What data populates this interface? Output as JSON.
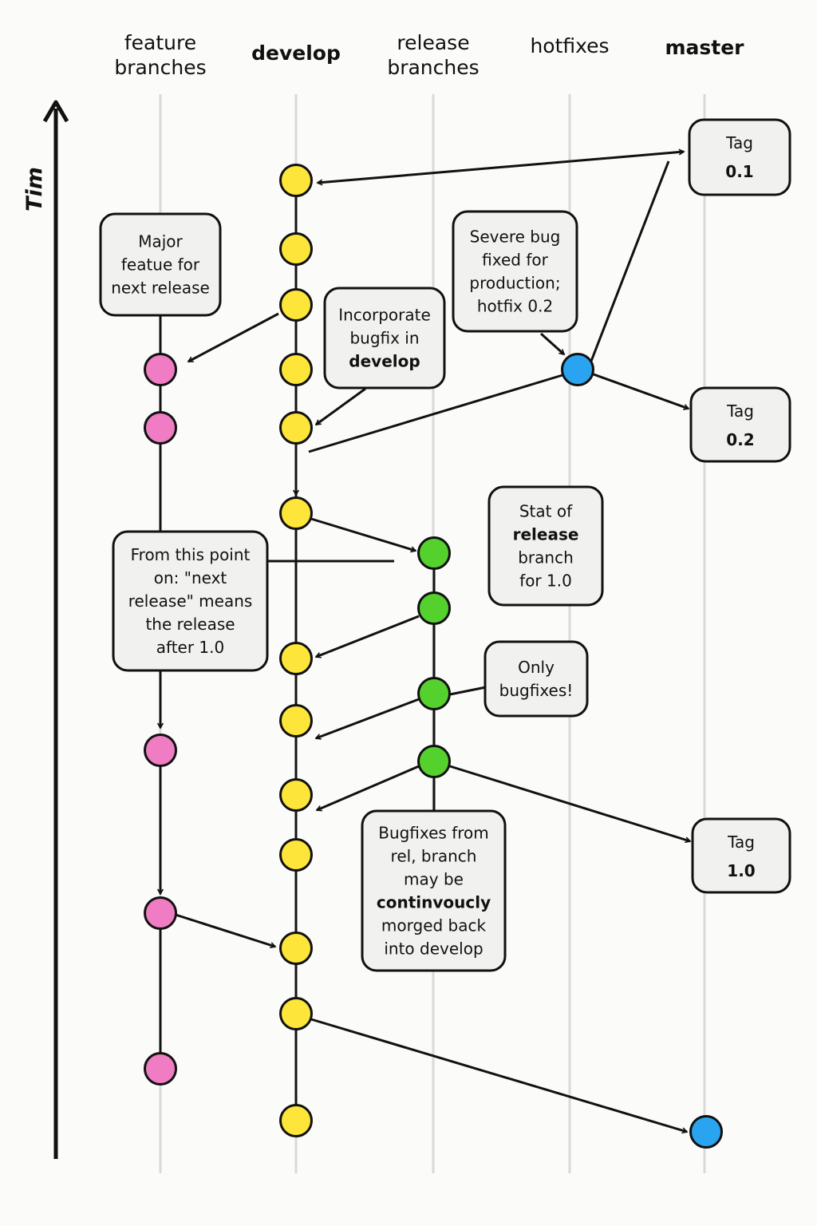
{
  "columns": [
    {
      "label": [
        "feature",
        "branches"
      ],
      "bold": false
    },
    {
      "label": [
        "develop"
      ],
      "bold": true
    },
    {
      "label": [
        "release",
        "branches"
      ],
      "bold": false
    },
    {
      "label": [
        "hotfixes"
      ],
      "bold": false
    },
    {
      "label": [
        "master"
      ],
      "bold": true
    }
  ],
  "axis_label": "Tim",
  "colors": {
    "feature": "#f07cc4",
    "develop": "#fde53a",
    "release": "#55d12e",
    "hotfix": "#2aa4f0",
    "lane": "#d9d9d9",
    "box_fill": "#f1f1f0"
  },
  "tags": [
    {
      "label": "Tag",
      "version": "0.1"
    },
    {
      "label": "Tag",
      "version": "0.2"
    },
    {
      "label": "Tag",
      "version": "1.0"
    }
  ],
  "notes": [
    {
      "id": "major-feature",
      "lines": [
        [
          [
            "Major",
            false
          ]
        ],
        [
          [
            "featue for",
            false
          ]
        ],
        [
          [
            "next release",
            false
          ]
        ]
      ]
    },
    {
      "id": "incorporate-bugfix",
      "lines": [
        [
          [
            "Incorporate",
            false
          ]
        ],
        [
          [
            "bugfix in",
            false
          ]
        ],
        [
          [
            "develop",
            true
          ]
        ]
      ]
    },
    {
      "id": "severe-bug",
      "lines": [
        [
          [
            "Severe bug",
            false
          ]
        ],
        [
          [
            "fixed for",
            false
          ]
        ],
        [
          [
            "production;",
            false
          ]
        ],
        [
          [
            "hotfix 0.2",
            false
          ]
        ]
      ]
    },
    {
      "id": "start-release",
      "lines": [
        [
          [
            "Stat of",
            false
          ]
        ],
        [
          [
            "release",
            true
          ]
        ],
        [
          [
            "branch",
            false
          ]
        ],
        [
          [
            "for 1.0",
            false
          ]
        ]
      ]
    },
    {
      "id": "from-this-point",
      "lines": [
        [
          [
            "From this point",
            false
          ]
        ],
        [
          [
            "on: \"next",
            false
          ]
        ],
        [
          [
            "release\" means",
            false
          ]
        ],
        [
          [
            "the release",
            false
          ]
        ],
        [
          [
            "after 1.0",
            false
          ]
        ]
      ]
    },
    {
      "id": "only-bugfixes",
      "lines": [
        [
          [
            "Only",
            false
          ]
        ],
        [
          [
            "bugfixes!",
            false
          ]
        ]
      ]
    },
    {
      "id": "bugfixes-merged",
      "lines": [
        [
          [
            "Bugfixes from",
            false
          ]
        ],
        [
          [
            "rel, branch",
            false
          ]
        ],
        [
          [
            "may be",
            false
          ]
        ],
        [
          [
            "continvoucly",
            true
          ]
        ],
        [
          [
            "morged back",
            false
          ]
        ],
        [
          [
            "into develop",
            false
          ]
        ]
      ]
    }
  ]
}
